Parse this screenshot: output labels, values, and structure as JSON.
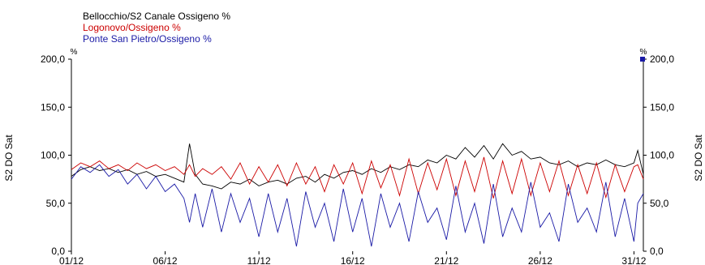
{
  "chart_data": {
    "type": "line",
    "legend": [
      {
        "name": "Bellocchio/S2 Canale Ossigeno %",
        "color": "#000000"
      },
      {
        "name": "Logonovo/Ossigeno %",
        "color": "#cc0000"
      },
      {
        "name": "Ponte San Pietro/Ossigeno %",
        "color": "#1a1aa6"
      }
    ],
    "ylabel_left": "S2 DO Sat",
    "ylabel_right": "S2 DO Sat",
    "unit_left": "%",
    "unit_right": "%",
    "ylim": [
      0,
      200
    ],
    "y_ticks": [
      "0,0",
      "50,0",
      "100,0",
      "150,0",
      "200,0"
    ],
    "y_tick_values": [
      0,
      50,
      100,
      150,
      200
    ],
    "x_ticks": [
      "01/12",
      "06/12",
      "11/12",
      "16/12",
      "21/12",
      "26/12",
      "31/12"
    ],
    "x_tick_days": [
      1,
      6,
      11,
      16,
      21,
      26,
      31
    ],
    "xlim_days": [
      1,
      31.5
    ],
    "series": [
      {
        "name": "Bellocchio/S2 Canale Ossigeno %",
        "color": "#000000",
        "day": [
          1,
          1.5,
          2,
          2.5,
          3,
          3.5,
          4,
          4.5,
          5,
          5.5,
          6,
          6.5,
          7,
          7.3,
          7.6,
          8,
          8.5,
          9,
          9.5,
          10,
          10.5,
          11,
          11.5,
          12,
          12.5,
          13,
          13.5,
          14,
          14.5,
          15,
          15.5,
          16,
          16.5,
          17,
          17.5,
          18,
          18.5,
          19,
          19.5,
          20,
          20.5,
          21,
          21.5,
          22,
          22.5,
          23,
          23.5,
          24,
          24.5,
          25,
          25.5,
          26,
          26.5,
          27,
          27.5,
          28,
          28.5,
          29,
          29.5,
          30,
          30.5,
          31,
          31.2,
          31.5
        ],
        "values": [
          78,
          85,
          88,
          84,
          86,
          82,
          85,
          80,
          83,
          78,
          80,
          76,
          72,
          112,
          80,
          70,
          68,
          65,
          72,
          70,
          75,
          68,
          72,
          74,
          70,
          76,
          78,
          72,
          80,
          76,
          82,
          84,
          80,
          86,
          82,
          88,
          85,
          90,
          88,
          95,
          92,
          100,
          96,
          108,
          98,
          110,
          96,
          112,
          100,
          104,
          96,
          98,
          92,
          90,
          94,
          88,
          92,
          90,
          95,
          90,
          88,
          92,
          105,
          80
        ]
      },
      {
        "name": "Logonovo/Ossigeno %",
        "color": "#cc0000",
        "day": [
          1,
          1.5,
          2,
          2.5,
          3,
          3.5,
          4,
          4.5,
          5,
          5.5,
          6,
          6.5,
          7,
          7.3,
          7.6,
          8,
          8.5,
          9,
          9.5,
          10,
          10.5,
          11,
          11.5,
          12,
          12.5,
          13,
          13.5,
          14,
          14.5,
          15,
          15.5,
          16,
          16.5,
          17,
          17.5,
          18,
          18.5,
          19,
          19.5,
          20,
          20.5,
          21,
          21.5,
          22,
          22.5,
          23,
          23.5,
          24,
          24.5,
          25,
          25.5,
          26,
          26.5,
          27,
          27.5,
          28,
          28.5,
          29,
          29.5,
          30,
          30.5,
          31,
          31.2,
          31.5
        ],
        "values": [
          85,
          92,
          88,
          94,
          86,
          90,
          84,
          92,
          86,
          90,
          84,
          88,
          80,
          90,
          78,
          86,
          80,
          88,
          75,
          92,
          70,
          88,
          72,
          90,
          68,
          92,
          70,
          88,
          62,
          90,
          70,
          92,
          60,
          94,
          66,
          90,
          58,
          96,
          60,
          92,
          64,
          96,
          58,
          94,
          62,
          98,
          55,
          94,
          60,
          96,
          58,
          92,
          62,
          94,
          58,
          90,
          60,
          92,
          56,
          90,
          62,
          88,
          90,
          75
        ]
      },
      {
        "name": "Ponte San Pietro/Ossigeno %",
        "color": "#1a1aa6",
        "day": [
          1,
          1.5,
          2,
          2.5,
          3,
          3.5,
          4,
          4.5,
          5,
          5.5,
          6,
          6.5,
          7,
          7.3,
          7.6,
          8,
          8.5,
          9,
          9.5,
          10,
          10.5,
          11,
          11.5,
          12,
          12.5,
          13,
          13.5,
          14,
          14.5,
          15,
          15.5,
          16,
          16.5,
          17,
          17.5,
          18,
          18.5,
          19,
          19.5,
          20,
          20.5,
          21,
          21.5,
          22,
          22.5,
          23,
          23.5,
          24,
          24.5,
          25,
          25.5,
          26,
          26.5,
          27,
          27.5,
          28,
          28.5,
          29,
          29.5,
          30,
          30.5,
          31,
          31.2,
          31.5
        ],
        "values": [
          75,
          88,
          82,
          90,
          78,
          85,
          70,
          80,
          65,
          78,
          62,
          70,
          55,
          30,
          60,
          25,
          65,
          20,
          60,
          30,
          55,
          15,
          60,
          20,
          55,
          5,
          62,
          25,
          50,
          10,
          65,
          20,
          55,
          5,
          60,
          25,
          50,
          10,
          62,
          30,
          45,
          12,
          68,
          20,
          50,
          8,
          70,
          15,
          45,
          20,
          72,
          25,
          40,
          10,
          70,
          30,
          45,
          20,
          72,
          15,
          55,
          10,
          50,
          60
        ]
      }
    ]
  }
}
